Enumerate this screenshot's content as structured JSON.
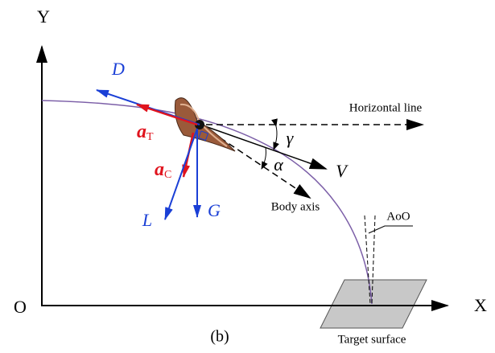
{
  "axes": {
    "y": "Y",
    "x": "X",
    "origin": "O"
  },
  "forces": {
    "drag": "D",
    "lift": "L",
    "gravity": "G",
    "velocity": "V"
  },
  "accelerations": {
    "tangential": {
      "main": "a",
      "sub": "T"
    },
    "centripetal": {
      "main": "a",
      "sub": "C"
    }
  },
  "angles": {
    "gamma": "γ",
    "alpha": "α"
  },
  "annotations": {
    "horizontal": "Horizontal line",
    "body_axis": "Body axis",
    "aoo": "AoO",
    "target": "Target surface"
  },
  "caption": "(b)"
}
